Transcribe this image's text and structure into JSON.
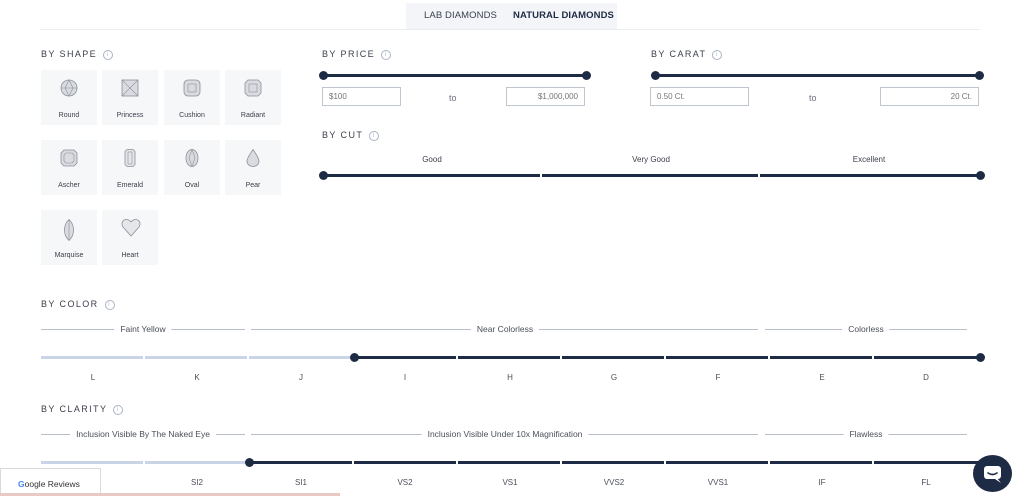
{
  "tabs": [
    {
      "label": "LAB DIAMONDS",
      "active": false
    },
    {
      "label": "NATURAL DIAMONDS",
      "active": true
    }
  ],
  "shape_section": {
    "title": "BY SHAPE",
    "info_icon": "i",
    "shapes": [
      {
        "label": "Round"
      },
      {
        "label": "Princess"
      },
      {
        "label": "Cushion"
      },
      {
        "label": "Radiant"
      },
      {
        "label": "Ascher"
      },
      {
        "label": "Emerald"
      },
      {
        "label": "Oval"
      },
      {
        "label": "Pear"
      },
      {
        "label": "Marquise"
      },
      {
        "label": "Heart"
      }
    ]
  },
  "price_section": {
    "title": "BY PRICE",
    "min_placeholder": "$100",
    "to": "to",
    "max_placeholder": "$1,000,000"
  },
  "carat_section": {
    "title": "BY CARAT",
    "min_placeholder": "0.50 Ct.",
    "to": "to",
    "max_placeholder": "20 Ct."
  },
  "cut_section": {
    "title": "BY CUT",
    "labels": [
      "Good",
      "Very Good",
      "Excellent"
    ]
  },
  "color_section": {
    "title": "BY COLOR",
    "groups": [
      "Faint Yellow",
      "Near Colorless",
      "Colorless"
    ],
    "grades": [
      "L",
      "K",
      "J",
      "I",
      "H",
      "G",
      "F",
      "E",
      "D"
    ]
  },
  "clarity_section": {
    "title": "BY CLARITY",
    "groups": [
      "Inclusion Visible By The Naked Eye",
      "Inclusion Visible Under 10x Magnification",
      "Flawless"
    ],
    "grades": [
      "SI2",
      "SI1",
      "VS2",
      "VS1",
      "VVS2",
      "VVS1",
      "IF",
      "FL"
    ]
  },
  "google_reviews": {
    "g": "G",
    "text": "oogle Reviews"
  },
  "colors": {
    "navy": "#1e2b45",
    "light_track": "#c9d4e6",
    "tab_bg": "#f3f5f8"
  }
}
